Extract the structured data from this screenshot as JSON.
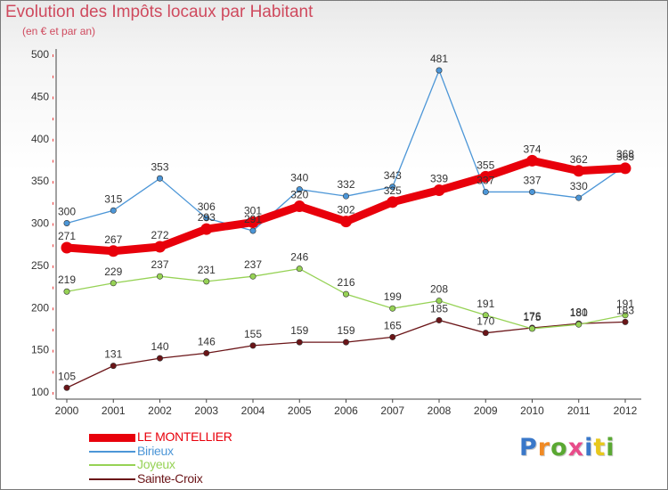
{
  "header": {
    "title": "Evolution des Impôts locaux par Habitant",
    "subtitle": "(en € et par an)"
  },
  "logo": {
    "text": "Proxiti",
    "letter_colors": [
      "#3a78c9",
      "#f08a24",
      "#5aa832",
      "#e84c8a",
      "#3a78c9",
      "#e8c81c",
      "#5aa832"
    ]
  },
  "chart_data": {
    "type": "line",
    "x": [
      "2000",
      "2001",
      "2002",
      "2003",
      "2004",
      "2005",
      "2006",
      "2007",
      "2008",
      "2009",
      "2010",
      "2011",
      "2012"
    ],
    "ylim": [
      100,
      500
    ],
    "yticks": [
      100,
      150,
      200,
      250,
      300,
      350,
      400,
      450,
      500
    ],
    "grid": false,
    "legend_position": "bottom-left",
    "series": [
      {
        "name": "LE MONTELLIER",
        "color": "#e8000b",
        "emphasis": "thick",
        "values": [
          271,
          267,
          272,
          293,
          301,
          320,
          302,
          325,
          339,
          355,
          374,
          362,
          365
        ],
        "labels": [
          "271",
          "267",
          "272",
          "293",
          "301",
          "320",
          "302",
          "325",
          "339",
          "355",
          "374",
          "362",
          "365"
        ]
      },
      {
        "name": "Birieux",
        "color": "#4c96d7",
        "values": [
          300,
          315,
          353,
          306,
          291,
          340,
          332,
          343,
          481,
          337,
          337,
          330,
          368
        ],
        "labels": [
          "300",
          "315",
          "353",
          "306",
          "291",
          "340",
          "332",
          "343",
          "481",
          "337",
          "337",
          "330",
          "368"
        ]
      },
      {
        "name": "Joyeux",
        "color": "#96d255",
        "values": [
          219,
          229,
          237,
          231,
          237,
          246,
          216,
          199,
          208,
          191,
          175,
          180,
          191
        ],
        "labels": [
          "219",
          "229",
          "237",
          "231",
          "237",
          "246",
          "216",
          "199",
          "208",
          "191",
          "175",
          "180",
          "191"
        ]
      },
      {
        "name": "Sainte-Croix",
        "color": "#6b1518",
        "values": [
          105,
          131,
          140,
          146,
          155,
          159,
          159,
          165,
          185,
          170,
          176,
          181,
          183
        ],
        "labels": [
          "105",
          "131",
          "140",
          "146",
          "155",
          "159",
          "159",
          "165",
          "185",
          "170",
          "176",
          "181",
          "183"
        ]
      }
    ]
  }
}
